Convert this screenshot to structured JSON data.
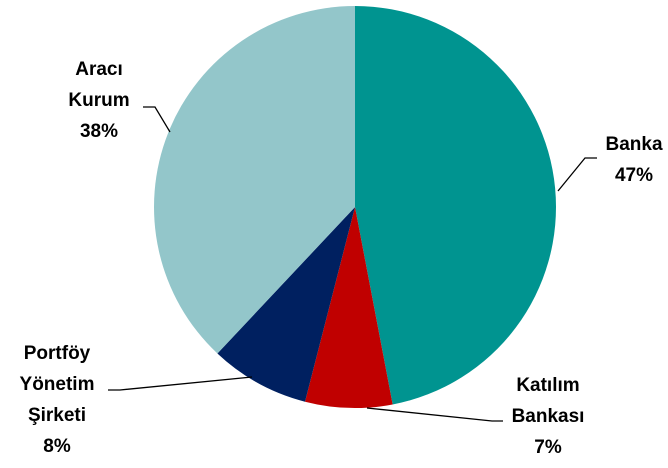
{
  "chart_data": {
    "type": "pie",
    "title": "",
    "slices": [
      {
        "label_lines": [
          "Banka"
        ],
        "pct_label": "47%",
        "value": 47,
        "color": "#009490"
      },
      {
        "label_lines": [
          "Katılım",
          "Bankası"
        ],
        "pct_label": "7%",
        "value": 7,
        "color": "#C00000"
      },
      {
        "label_lines": [
          "Portföy",
          "Yönetim",
          "Şirketi"
        ],
        "pct_label": "8%",
        "value": 8,
        "color": "#002060"
      },
      {
        "label_lines": [
          "Aracı",
          "Kurum"
        ],
        "pct_label": "38%",
        "value": 38,
        "color": "#93C6CA"
      }
    ],
    "start_angle_deg": 0,
    "direction": "clockwise",
    "legend": "none",
    "data_labels": "outside-with-leader-lines"
  }
}
